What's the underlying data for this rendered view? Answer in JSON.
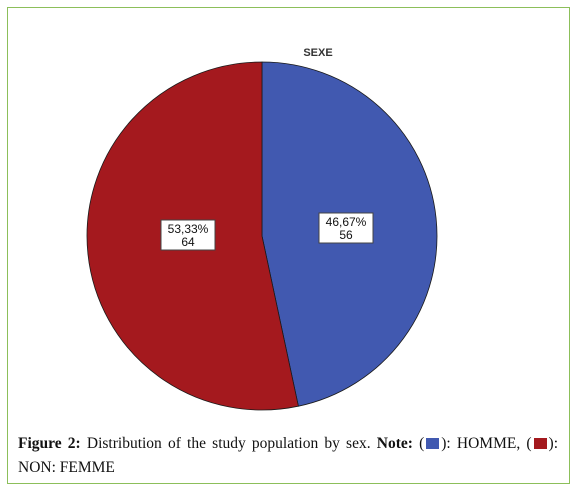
{
  "chart_data": {
    "type": "pie",
    "title": "SEXE",
    "slices": [
      {
        "label": "HOMME",
        "value": 56,
        "percent_label": "46,67%",
        "count_label": "56",
        "color": "#4159b0"
      },
      {
        "label": "NON: FEMME",
        "value": 64,
        "percent_label": "53,33%",
        "count_label": "64",
        "color": "#a4191e"
      }
    ],
    "legend": "none",
    "data_labels": true
  },
  "caption": {
    "figure_label": "Figure 2:",
    "text": " Distribution of the study population by sex. ",
    "note_label": "Note:",
    "open1": " (",
    "close1": "):",
    "item1": " HOMME, (",
    "close2": "): NON: FEMME"
  }
}
